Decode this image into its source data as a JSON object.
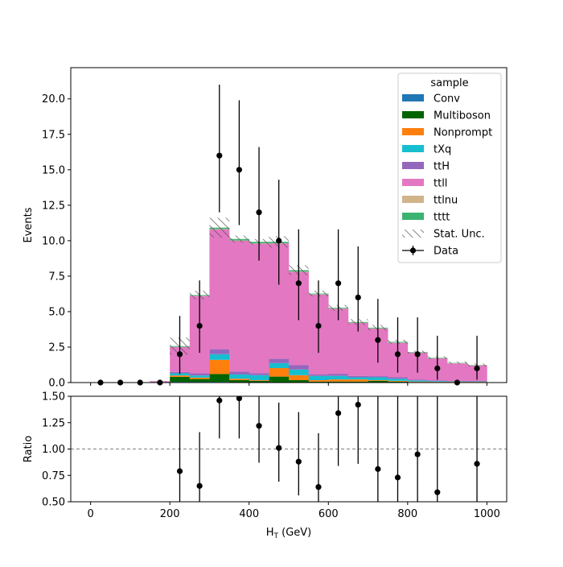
{
  "chart_data": [
    {
      "type": "stacked_step_histogram",
      "ylabel": "Events",
      "xlim": [
        -50,
        1050
      ],
      "ylim": [
        0,
        22.2
      ],
      "yticks": [
        0.0,
        2.5,
        5.0,
        7.5,
        10.0,
        12.5,
        15.0,
        17.5,
        20.0
      ],
      "ytick_labels": [
        "0.0",
        "2.5",
        "5.0",
        "7.5",
        "10.0",
        "12.5",
        "15.0",
        "17.5",
        "20.0"
      ],
      "bin_edges": [
        0,
        50,
        100,
        150,
        200,
        250,
        300,
        350,
        400,
        450,
        500,
        550,
        600,
        650,
        700,
        750,
        800,
        850,
        900,
        950,
        1000
      ],
      "series": [
        {
          "name": "Conv",
          "color": "#1f77b4",
          "values": [
            0,
            0,
            0,
            0,
            0.05,
            0.05,
            0.05,
            0.02,
            0.02,
            0.02,
            0.02,
            0.02,
            0.02,
            0.02,
            0.02,
            0.02,
            0.01,
            0.01,
            0.01,
            0.01
          ]
        },
        {
          "name": "Multiboson",
          "color": "#006400",
          "values": [
            0,
            0,
            0,
            0,
            0.35,
            0.2,
            0.55,
            0.15,
            0.1,
            0.4,
            0.15,
            0.05,
            0.05,
            0.05,
            0.1,
            0.05,
            0.03,
            0.02,
            0.02,
            0.02
          ]
        },
        {
          "name": "Nonprompt",
          "color": "#ff7f0e",
          "values": [
            0,
            0,
            0,
            0,
            0.1,
            0.1,
            1.0,
            0.1,
            0.05,
            0.6,
            0.35,
            0.1,
            0.15,
            0.15,
            0.05,
            0.05,
            0.03,
            0.02,
            0.02,
            0.02
          ]
        },
        {
          "name": "tXq",
          "color": "#17becf",
          "values": [
            0,
            0,
            0,
            0,
            0.15,
            0.15,
            0.4,
            0.3,
            0.35,
            0.35,
            0.4,
            0.3,
            0.25,
            0.15,
            0.2,
            0.15,
            0.08,
            0.05,
            0.03,
            0.03
          ]
        },
        {
          "name": "ttH",
          "color": "#9467bd",
          "values": [
            0,
            0,
            0,
            0.05,
            0.1,
            0.15,
            0.35,
            0.2,
            0.15,
            0.3,
            0.3,
            0.1,
            0.15,
            0.1,
            0.08,
            0.1,
            0.05,
            0.05,
            0.03,
            0.03
          ]
        },
        {
          "name": "ttll",
          "color": "#e377c2",
          "values": [
            0,
            0,
            0,
            0.05,
            1.75,
            5.45,
            8.45,
            9.23,
            9.13,
            8.13,
            6.58,
            5.63,
            4.58,
            3.73,
            3.35,
            2.43,
            1.9,
            1.55,
            1.24,
            1.09
          ]
        },
        {
          "name": "ttlnu",
          "color": "#d2b48c",
          "values": [
            0,
            0,
            0,
            0,
            0.02,
            0.02,
            0.02,
            0.02,
            0.02,
            0.02,
            0.02,
            0.02,
            0.02,
            0.02,
            0.02,
            0.02,
            0.02,
            0.02,
            0.02,
            0.02
          ]
        },
        {
          "name": "tttt",
          "color": "#3cb371",
          "values": [
            0,
            0,
            0,
            0,
            0.05,
            0.05,
            0.1,
            0.1,
            0.1,
            0.1,
            0.1,
            0.05,
            0.05,
            0.05,
            0.05,
            0.05,
            0.03,
            0.03,
            0.02,
            0.02
          ]
        }
      ],
      "stat_unc": [
        0,
        0,
        0,
        0.02,
        0.6,
        0.3,
        0.7,
        0.25,
        0.2,
        0.4,
        0.35,
        0.2,
        0.2,
        0.2,
        0.2,
        0.15,
        0.1,
        0.1,
        0.1,
        0.1
      ],
      "data": {
        "name": "Data",
        "x": [
          25,
          75,
          125,
          175,
          225,
          275,
          325,
          375,
          425,
          475,
          525,
          575,
          625,
          675,
          725,
          775,
          825,
          875,
          925,
          975
        ],
        "y": [
          0,
          0,
          0,
          0,
          2,
          4,
          16,
          15,
          12,
          10,
          7,
          4,
          7,
          6,
          3,
          2,
          2,
          1,
          0,
          1
        ],
        "yerr_low": [
          0,
          0,
          0,
          0,
          1.4,
          1.9,
          4.0,
          3.9,
          3.4,
          3.1,
          2.6,
          1.9,
          2.6,
          2.4,
          1.6,
          1.3,
          1.3,
          0.8,
          0,
          0.8
        ],
        "yerr_high": [
          0,
          0,
          0,
          0,
          2.7,
          3.2,
          5.0,
          4.9,
          4.6,
          4.3,
          3.8,
          3.2,
          3.8,
          3.6,
          2.9,
          2.6,
          2.6,
          2.3,
          0,
          2.3
        ]
      },
      "legend": {
        "title": "sample",
        "position": "upper right",
        "stat_unc_label": "Stat. Unc."
      }
    },
    {
      "type": "scatter_errorbar",
      "ylabel": "Ratio",
      "xlabel": "H_T (GeV)",
      "xlim": [
        -50,
        1050
      ],
      "ylim": [
        0.5,
        1.5
      ],
      "reference_line": 1.0,
      "xticks": [
        0,
        200,
        400,
        600,
        800,
        1000
      ],
      "xtick_labels": [
        "0",
        "200",
        "400",
        "600",
        "800",
        "1000"
      ],
      "yticks": [
        0.5,
        0.75,
        1.0,
        1.25,
        1.5
      ],
      "ytick_labels": [
        "0.50",
        "0.75",
        "1.00",
        "1.25",
        "1.50"
      ],
      "x": [
        225,
        275,
        325,
        375,
        425,
        475,
        525,
        575,
        625,
        675,
        725,
        775,
        825,
        875,
        975
      ],
      "y": [
        0.79,
        0.65,
        1.46,
        1.48,
        1.22,
        1.01,
        0.88,
        0.64,
        1.34,
        1.42,
        0.81,
        0.73,
        0.95,
        0.59,
        0.86
      ],
      "yerr_low": [
        0.56,
        0.3,
        0.36,
        0.38,
        0.35,
        0.32,
        0.32,
        0.31,
        0.5,
        0.56,
        0.43,
        0.46,
        0.6,
        0.5,
        0.7
      ],
      "yerr_high": [
        1.06,
        0.51,
        0.45,
        0.47,
        0.44,
        0.43,
        0.47,
        0.51,
        0.72,
        0.85,
        0.77,
        0.95,
        1.2,
        1.4,
        1.95
      ]
    }
  ]
}
